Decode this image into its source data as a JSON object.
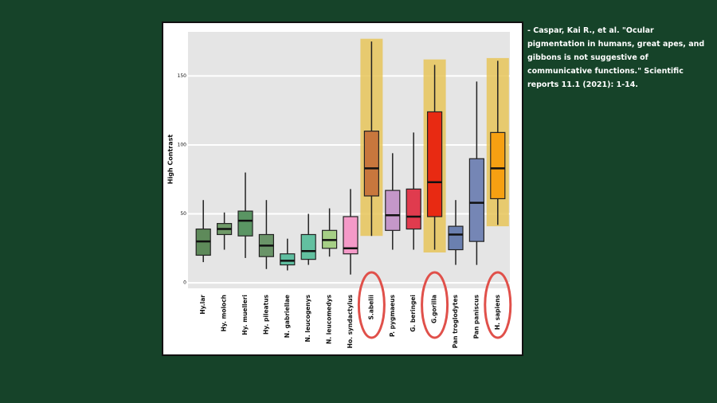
{
  "chart_data": {
    "type": "box",
    "y_label": "High Contrast",
    "categories": [
      "Hy.lar",
      "Hy. moloch",
      "Hy. muelleri",
      "Hy. pileatus",
      "N. gabriellae",
      "N. leucogenys",
      "N. leucomedys",
      "Ho. syndactylus",
      "S.abelii",
      "P. pygmaeus",
      "G. beringei",
      "G.gorilla",
      "Pan troglodytes",
      "Pan paniscus",
      "H. sapiens"
    ],
    "whisker_low": [
      15,
      24,
      18,
      10,
      9,
      13,
      19,
      6,
      34,
      24,
      24,
      24,
      13,
      13,
      42
    ],
    "q1": [
      20,
      35,
      34,
      19,
      13,
      17,
      25,
      21,
      63,
      38,
      39,
      48,
      24,
      30,
      61
    ],
    "median": [
      30,
      39,
      45,
      27,
      16,
      23,
      31,
      25,
      83,
      49,
      48,
      73,
      35,
      58,
      83
    ],
    "q3": [
      39,
      43,
      52,
      35,
      21,
      35,
      38,
      48,
      110,
      67,
      68,
      124,
      41,
      90,
      109
    ],
    "whisker_high": [
      60,
      51,
      80,
      60,
      32,
      50,
      54,
      68,
      175,
      94,
      109,
      158,
      60,
      146,
      161
    ],
    "colors": [
      "#5e8a5a",
      "#6f9a68",
      "#5a9563",
      "#6a9468",
      "#5fbea0",
      "#62c0a0",
      "#a6cf86",
      "#f49ac8",
      "#c8773d",
      "#c497c9",
      "#e03b4e",
      "#e82a12",
      "#6b80b0",
      "#7586b5",
      "#f6a012"
    ],
    "highlights": [
      {
        "category": "S.abelii",
        "range": [
          34,
          177
        ]
      },
      {
        "category": "G.gorilla",
        "range": [
          22,
          162
        ]
      },
      {
        "category": "H. sapiens",
        "range": [
          41,
          163
        ]
      }
    ],
    "highlight_color": "#e8c55a",
    "ylim": [
      -4,
      182
    ],
    "yticks": [
      0,
      50,
      100,
      150
    ],
    "grid": true
  },
  "citation": "- Caspar, Kai R., et al. \"Ocular pigmentation in humans, great apes, and gibbons is not suggestive of communicative functions.\" Scientific reports 11.1 (2021): 1-14."
}
